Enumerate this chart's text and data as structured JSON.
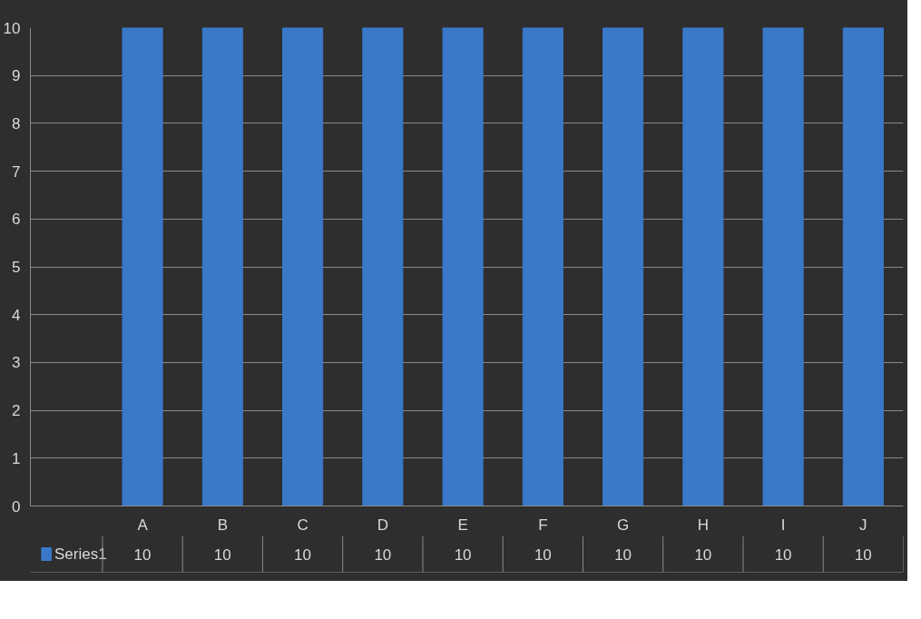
{
  "chart_data": {
    "type": "bar",
    "categories": [
      "A",
      "B",
      "C",
      "D",
      "E",
      "F",
      "G",
      "H",
      "I",
      "J"
    ],
    "series": [
      {
        "name": "Series1",
        "color": "#3a78c8",
        "values": [
          10,
          10,
          10,
          10,
          10,
          10,
          10,
          10,
          10,
          10
        ]
      }
    ],
    "ylim": [
      0,
      10
    ],
    "yticks": [
      0,
      1,
      2,
      3,
      4,
      5,
      6,
      7,
      8,
      9,
      10
    ],
    "grid": "y",
    "data_labels": true,
    "legend": "bottom"
  }
}
